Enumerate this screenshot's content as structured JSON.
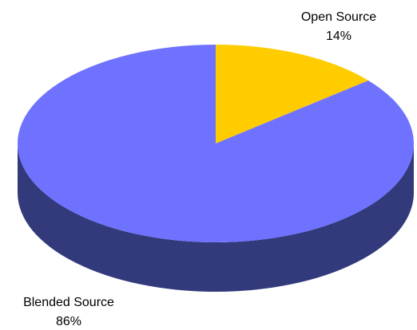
{
  "chart_data": {
    "type": "pie",
    "title": "",
    "slices": [
      {
        "label": "Open Source",
        "percent_label": "14%",
        "value": 14,
        "color": "#FFCC00",
        "side_color": "#B38F00"
      },
      {
        "label": "Blended Source",
        "percent_label": "86%",
        "value": 86,
        "color": "#6F72FF",
        "side_color": "#333A7C"
      }
    ],
    "style": "3d",
    "legend": "none",
    "data_labels": "outside"
  }
}
